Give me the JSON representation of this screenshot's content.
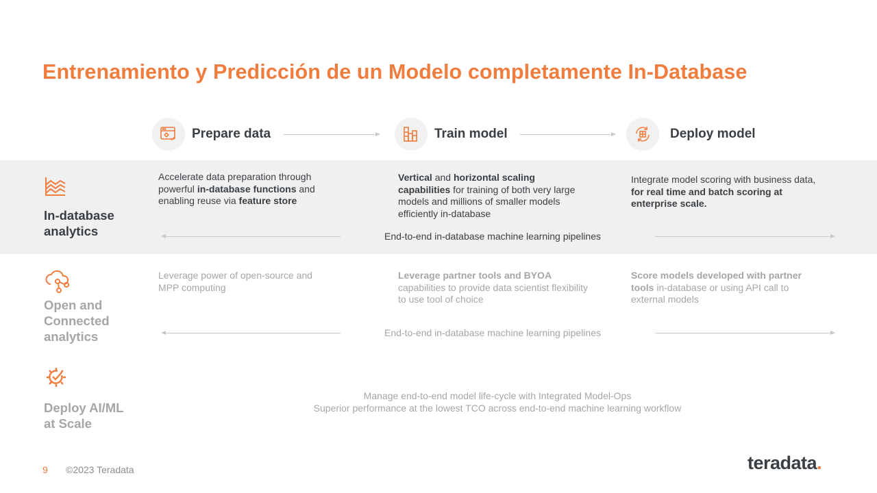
{
  "title": "Entrenamiento y Predicción de un Modelo completamente In-Database",
  "stages": [
    {
      "label": "Prepare data",
      "icon": "browser-gear-icon"
    },
    {
      "label": "Train model",
      "icon": "building-blocks-icon"
    },
    {
      "label": "Deploy model",
      "icon": "refresh-grid-icon"
    }
  ],
  "rows": {
    "indb": {
      "title_line1": "In-database",
      "title_line2": "analytics",
      "icon": "layered-chart-icon",
      "prepare": {
        "t1": "Accelerate data preparation through",
        "t2": "powerful ",
        "b1": "in-database functions",
        "t3": " and",
        "t4": "enabling reuse via ",
        "b2": "feature store"
      },
      "train": {
        "b1": "Vertical",
        "t1": " and ",
        "b2": "horizontal scaling",
        "b3": "capabilities",
        "t2": " for training of both very large",
        "t3": "models and millions of smaller models",
        "t4": "efficiently in-database"
      },
      "deploy": {
        "t1": "Integrate model scoring with business data,",
        "b1": "for real time and batch scoring at",
        "b2": "enterprise scale."
      },
      "pipeline": "End-to-end in-database machine learning pipelines"
    },
    "open": {
      "title_line1": "Open and",
      "title_line2": "Connected",
      "title_line3": "analytics",
      "icon": "cloud-network-icon",
      "prepare": {
        "t1": "Leverage power of open-source and",
        "t2": "MPP computing"
      },
      "train": {
        "b1": "Leverage partner tools and BYOA",
        "t1": "capabilities to provide data scientist flexibility",
        "t2": "to use tool of choice"
      },
      "deploy": {
        "b1": "Score models developed with partner",
        "b2": "tools",
        "t1": " in-database or using API call to",
        "t2": "external models"
      },
      "pipeline": "End-to-end in-database machine learning pipelines"
    },
    "scale": {
      "title_line1": "Deploy AI/ML",
      "title_line2": "at Scale",
      "icon": "gear-check-icon",
      "line1": "Manage end-to-end model life-cycle with Integrated Model-Ops",
      "line2": "Superior performance at the lowest TCO across end-to-end machine learning workflow"
    }
  },
  "footer": {
    "page": "9",
    "copyright": "©2023 Teradata",
    "logo": "teradata",
    "logo_dot": "."
  },
  "colors": {
    "accent": "#f07c3d",
    "text": "#3a3f44",
    "muted": "#a6a6a6",
    "band": "#f0f0f0"
  }
}
